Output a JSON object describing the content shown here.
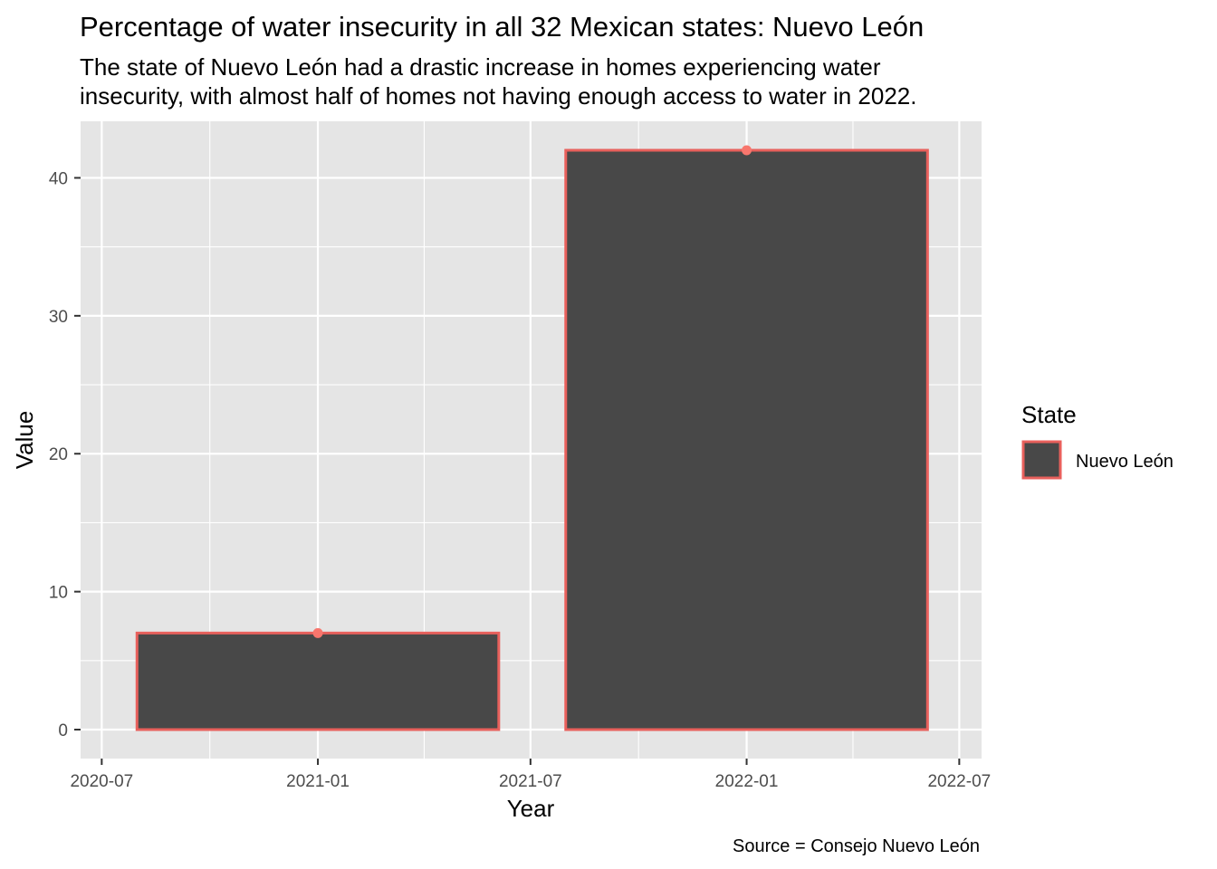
{
  "chart_data": {
    "type": "bar",
    "title": "Percentage of water insecurity in all 32 Mexican states: Nuevo León",
    "subtitle": [
      "The state of Nuevo León had a drastic increase in homes experiencing water",
      "insecurity, with almost half of homes not having enough access to water in 2022."
    ],
    "xlabel": "Year",
    "ylabel": "Value",
    "caption": "Source = Consejo Nuevo León",
    "x_ticks": [
      "2020-07",
      "2021-01",
      "2021-07",
      "2022-01",
      "2022-07"
    ],
    "y_ticks": [
      0,
      10,
      20,
      30,
      40
    ],
    "xlim": [
      "2020-06-13",
      "2022-07-20"
    ],
    "ylim": [
      -2.1,
      44.1
    ],
    "grid": true,
    "series": [
      {
        "name": "Nuevo León",
        "x": [
          "2021-01-01",
          "2022-01-01"
        ],
        "values": [
          7,
          42
        ],
        "bar_span": [
          [
            "2020-07-31",
            "2021-06-04"
          ],
          [
            "2021-07-31",
            "2022-06-04"
          ]
        ],
        "point_markers": true
      }
    ],
    "legend": {
      "title": "State",
      "position": "right",
      "entries": [
        "Nuevo León"
      ]
    },
    "colors": {
      "bar_fill": "#484848",
      "bar_outline": "#e8605c",
      "point": "#f8766d",
      "panel_background": "#e5e5e5",
      "grid_major": "#ffffff",
      "tick_mark": "#333333"
    }
  }
}
